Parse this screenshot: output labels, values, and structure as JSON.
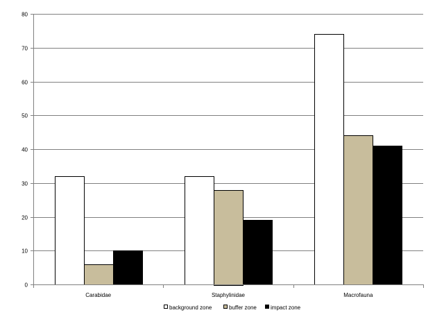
{
  "chart_data": {
    "type": "bar",
    "categories": [
      "Carabidae",
      "Staphylinidae",
      "Macrofauna"
    ],
    "series": [
      {
        "name": "background zone",
        "values": [
          32,
          32,
          74
        ],
        "color": "#ffffff"
      },
      {
        "name": "buffer zone",
        "values": [
          6,
          28,
          44
        ],
        "color": "#c8bd9c"
      },
      {
        "name": "impact zone",
        "values": [
          10,
          19,
          41
        ],
        "color": "#000000"
      }
    ],
    "ylim": [
      0,
      80
    ],
    "yticks": [
      0,
      10,
      20,
      30,
      40,
      50,
      60,
      70,
      80
    ],
    "grid": "horizontal",
    "legend_position": "bottom"
  }
}
